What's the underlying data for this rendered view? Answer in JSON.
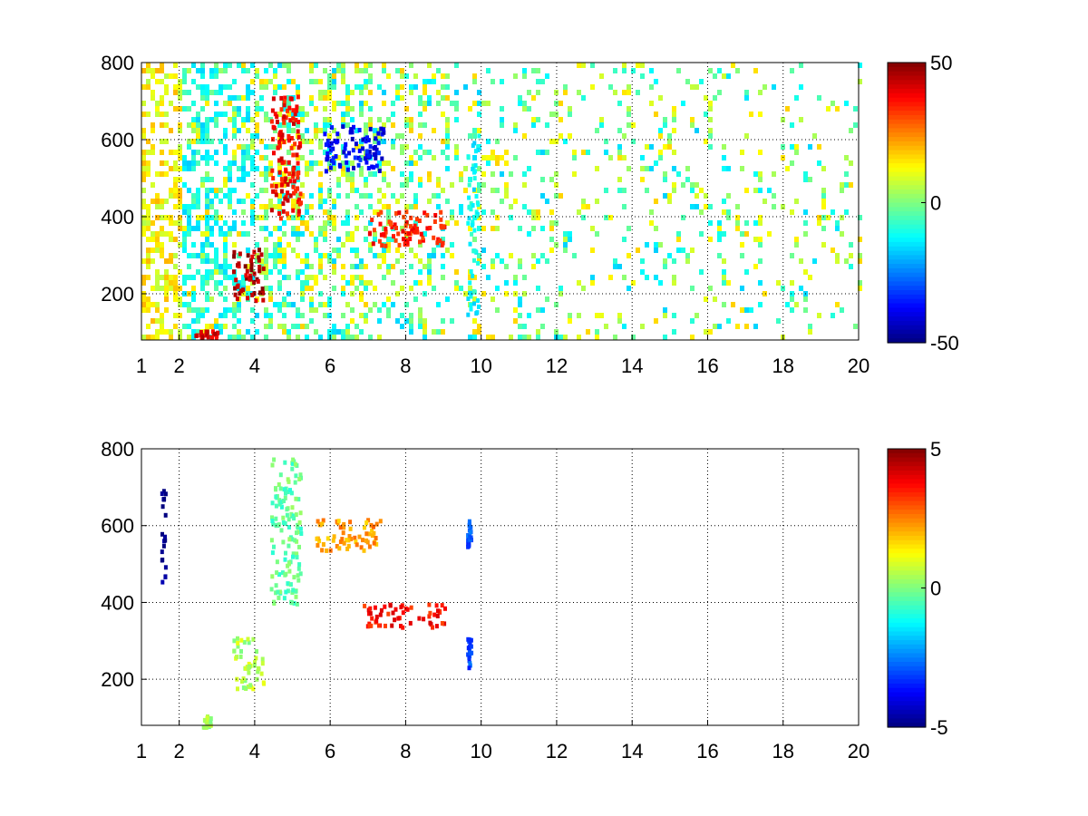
{
  "chart_data": [
    {
      "type": "heatmap",
      "title": "",
      "xlabel": "",
      "ylabel": "",
      "xlim": [
        1,
        20
      ],
      "ylim": [
        80,
        800
      ],
      "xticks": [
        1,
        2,
        4,
        6,
        8,
        10,
        12,
        14,
        16,
        18,
        20
      ],
      "xtick_labels": [
        "1",
        "2",
        "4",
        "6",
        "8",
        "10",
        "12",
        "14",
        "16",
        "18",
        "20"
      ],
      "yticks": [
        200,
        400,
        600,
        800
      ],
      "ytick_labels": [
        "200",
        "400",
        "600",
        "800"
      ],
      "grid": true,
      "colormap": "jet",
      "clim": [
        -50,
        50
      ],
      "colorbar": {
        "ticks": [
          50,
          0,
          -50
        ],
        "labels": [
          "50",
          "0",
          "-50"
        ],
        "placement": "right"
      },
      "features": [
        {
          "x": [
            1.0,
            2.0
          ],
          "y": [
            80,
            800
          ],
          "value": 12,
          "kind": "dense-band"
        },
        {
          "x": [
            2.0,
            4.0
          ],
          "y": [
            80,
            800
          ],
          "value": -10,
          "kind": "dense-band"
        },
        {
          "x": [
            2.4,
            3.0
          ],
          "y": [
            90,
            110
          ],
          "value": 40
        },
        {
          "x": [
            3.4,
            4.2
          ],
          "y": [
            180,
            320
          ],
          "value": 45
        },
        {
          "x": [
            4.4,
            5.2
          ],
          "y": [
            400,
            720
          ],
          "value": 38
        },
        {
          "x": [
            5.8,
            7.4
          ],
          "y": [
            520,
            640
          ],
          "value": -38
        },
        {
          "x": [
            7.0,
            9.0
          ],
          "y": [
            330,
            420
          ],
          "value": 35
        },
        {
          "x": [
            9.6,
            9.9
          ],
          "y": [
            150,
            620
          ],
          "value": -12
        }
      ],
      "noise_density_by_x": [
        [
          1,
          0.9
        ],
        [
          4,
          0.75
        ],
        [
          8,
          0.5
        ],
        [
          10,
          0.3
        ],
        [
          20,
          0.18
        ]
      ]
    },
    {
      "type": "heatmap",
      "title": "",
      "xlabel": "",
      "ylabel": "",
      "xlim": [
        1,
        20
      ],
      "ylim": [
        80,
        800
      ],
      "xticks": [
        1,
        2,
        4,
        6,
        8,
        10,
        12,
        14,
        16,
        18,
        20
      ],
      "xtick_labels": [
        "1",
        "2",
        "4",
        "6",
        "8",
        "10",
        "12",
        "14",
        "16",
        "18",
        "20"
      ],
      "yticks": [
        200,
        400,
        600,
        800
      ],
      "ytick_labels": [
        "200",
        "400",
        "600",
        "800"
      ],
      "grid": true,
      "colormap": "jet",
      "clim": [
        -5,
        5
      ],
      "colorbar": {
        "ticks": [
          5,
          0,
          -5
        ],
        "labels": [
          "5",
          "0",
          "-5"
        ],
        "placement": "right"
      },
      "features": [
        {
          "x": [
            1.5,
            1.6
          ],
          "y": [
            430,
            700
          ],
          "value": -5
        },
        {
          "x": [
            2.6,
            2.8
          ],
          "y": [
            80,
            110
          ],
          "value": 0.5
        },
        {
          "x": [
            3.4,
            4.2
          ],
          "y": [
            180,
            320
          ],
          "value": 0.5
        },
        {
          "x": [
            4.4,
            5.2
          ],
          "y": [
            400,
            780
          ],
          "value": -0.3
        },
        {
          "x": [
            5.6,
            7.4
          ],
          "y": [
            540,
            620
          ],
          "value": 2.2
        },
        {
          "x": [
            6.8,
            9.0
          ],
          "y": [
            340,
            400
          ],
          "value": 3.6
        },
        {
          "x": [
            9.6,
            9.7
          ],
          "y": [
            550,
            620
          ],
          "value": -3
        },
        {
          "x": [
            9.6,
            9.7
          ],
          "y": [
            230,
            310
          ],
          "value": -3
        }
      ]
    }
  ]
}
